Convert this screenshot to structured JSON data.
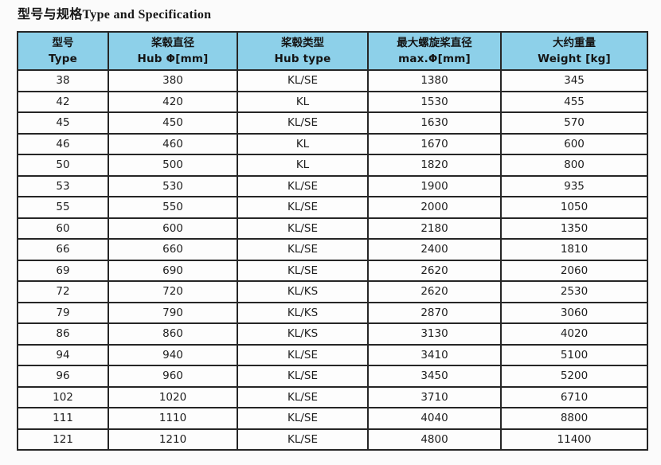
{
  "title": "型号与规格Type and Specification",
  "colors": {
    "header_bg": "#8dd0e9",
    "border": "#262626",
    "page_bg": "#fbfbfb"
  },
  "table": {
    "columns": [
      {
        "zh": "型号",
        "en": "Type"
      },
      {
        "zh": "桨毂直径",
        "en": "Hub Φ[mm]"
      },
      {
        "zh": "桨毂类型",
        "en": "Hub type"
      },
      {
        "zh": "最大螺旋桨直径",
        "en": "max.Φ[mm]"
      },
      {
        "zh": "大约重量",
        "en": "Weight [kg]"
      }
    ],
    "rows": [
      [
        "38",
        "380",
        "KL/SE",
        "1380",
        "345"
      ],
      [
        "42",
        "420",
        "KL",
        "1530",
        "455"
      ],
      [
        "45",
        "450",
        "KL/SE",
        "1630",
        "570"
      ],
      [
        "46",
        "460",
        "KL",
        "1670",
        "600"
      ],
      [
        "50",
        "500",
        "KL",
        "1820",
        "800"
      ],
      [
        "53",
        "530",
        "KL/SE",
        "1900",
        "935"
      ],
      [
        "55",
        "550",
        "KL/SE",
        "2000",
        "1050"
      ],
      [
        "60",
        "600",
        "KL/SE",
        "2180",
        "1350"
      ],
      [
        "66",
        "660",
        "KL/SE",
        "2400",
        "1810"
      ],
      [
        "69",
        "690",
        "KL/SE",
        "2620",
        "2060"
      ],
      [
        "72",
        "720",
        "KL/KS",
        "2620",
        "2530"
      ],
      [
        "79",
        "790",
        "KL/KS",
        "2870",
        "3060"
      ],
      [
        "86",
        "860",
        "KL/KS",
        "3130",
        "4020"
      ],
      [
        "94",
        "940",
        "KL/SE",
        "3410",
        "5100"
      ],
      [
        "96",
        "960",
        "KL/SE",
        "3450",
        "5200"
      ],
      [
        "102",
        "1020",
        "KL/SE",
        "3710",
        "6710"
      ],
      [
        "111",
        "1110",
        "KL/SE",
        "4040",
        "8800"
      ],
      [
        "121",
        "1210",
        "KL/SE",
        "4800",
        "11400"
      ]
    ]
  }
}
